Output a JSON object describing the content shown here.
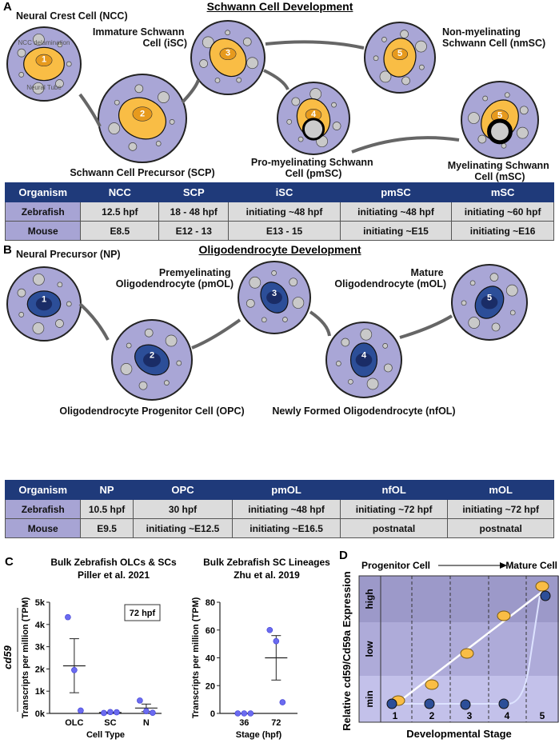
{
  "panelA": {
    "label": "A",
    "title": "Schwann Cell Development",
    "cells": [
      {
        "name": "Neural Crest Cell (NCC)",
        "num": "1",
        "extra": [
          "NCC delamination",
          "Neural Tube"
        ]
      },
      {
        "name": "Schwann Cell Precursor (SCP)",
        "num": "2"
      },
      {
        "name": "Immature Schwann Cell (iSC)",
        "num": "3"
      },
      {
        "name": "Pro-myelinating Schwann Cell (pmSC)",
        "num": "4"
      },
      {
        "name": "Non-myelinating Schwann Cell (nmSC)",
        "num": "5"
      },
      {
        "name": "Myelinating Schwann Cell (mSC)",
        "num": "5"
      }
    ],
    "table": {
      "headers": [
        "Organism",
        "NCC",
        "SCP",
        "iSC",
        "pmSC",
        "mSC"
      ],
      "rows": [
        [
          "Zebrafish",
          "12.5 hpf",
          "18 - 48 hpf",
          "initiating ~48 hpf",
          "initiating ~48 hpf",
          "initiating ~60 hpf"
        ],
        [
          "Mouse",
          "E8.5",
          "E12 - 13",
          "E13 - 15",
          "initiating ~E15",
          "initiating ~E16"
        ]
      ]
    }
  },
  "panelB": {
    "label": "B",
    "title": "Oligodendrocyte Development",
    "cells": [
      {
        "name": "Neural Precursor (NP)",
        "num": "1"
      },
      {
        "name": "Oligodendrocyte Progenitor Cell (OPC)",
        "num": "2"
      },
      {
        "name": "Premyelinating Oligodendrocyte (pmOL)",
        "num": "3"
      },
      {
        "name": "Newly Formed Oligodendrocyte (nfOL)",
        "num": "4"
      },
      {
        "name": "Mature Oligodendrocyte (mOL)",
        "num": "5"
      }
    ],
    "table": {
      "headers": [
        "Organism",
        "NP",
        "OPC",
        "pmOL",
        "nfOL",
        "mOL"
      ],
      "rows": [
        [
          "Zebrafish",
          "10.5 hpf",
          "30 hpf",
          "initiating ~48 hpf",
          "initiating ~72 hpf",
          "initiating ~72 hpf"
        ],
        [
          "Mouse",
          "E9.5",
          "initiating ~E12.5",
          "initiating ~E16.5",
          "postnatal",
          "postnatal"
        ]
      ]
    }
  },
  "panelC": {
    "label": "C",
    "gene_label": "cd59"
  },
  "panelD": {
    "label": "D",
    "top_left": "Progenitor Cell",
    "top_right": "Mature Cell",
    "ylabel": "Relative cd59/Cd59a Expression",
    "xlabel": "Developmental Stage",
    "levels": [
      "high",
      "low",
      "min"
    ],
    "stages": [
      "1",
      "2",
      "3",
      "4",
      "5"
    ]
  },
  "chart_data": [
    {
      "type": "scatter",
      "title": "Bulk Zebrafish OLCs & SCs",
      "subtitle": "Piller et al. 2021",
      "xlabel": "Cell Type",
      "ylabel": "Transcripts per million (TPM)",
      "annotation": "72 hpf",
      "ylim": [
        0,
        5000
      ],
      "yticks": [
        "0k",
        "1k",
        "2k",
        "3k",
        "4k",
        "5k"
      ],
      "categories": [
        "OLC",
        "SC",
        "N"
      ],
      "points": [
        [
          4330,
          1950,
          130
        ],
        [
          20,
          60,
          50
        ],
        [
          580,
          100,
          30
        ]
      ],
      "mean": [
        2140,
        40,
        240
      ],
      "err_low": [
        930,
        20,
        80
      ],
      "err_high": [
        3360,
        60,
        420
      ]
    },
    {
      "type": "scatter",
      "title": "Bulk Zebrafish SC Lineages",
      "subtitle": "Zhu et al. 2019",
      "xlabel": "Stage (hpf)",
      "ylabel": "Transcripts per million (TPM)",
      "ylim": [
        0,
        80
      ],
      "yticks": [
        "0",
        "20",
        "40",
        "60",
        "80"
      ],
      "categories": [
        "36",
        "72"
      ],
      "points": [
        [
          0,
          0,
          0
        ],
        [
          60,
          52,
          8
        ]
      ],
      "mean": [
        0,
        40
      ],
      "err_low": [
        0,
        24
      ],
      "err_high": [
        0,
        56
      ]
    }
  ],
  "colors": {
    "circle": "#a9a6d6",
    "schwann": "#f9bd45",
    "schwann_dark": "#e79a1d",
    "oligo": "#2c4e98",
    "oligo_dark": "#1a2c66",
    "header": "#1f3a7a",
    "dot": "#6b6bf0"
  }
}
